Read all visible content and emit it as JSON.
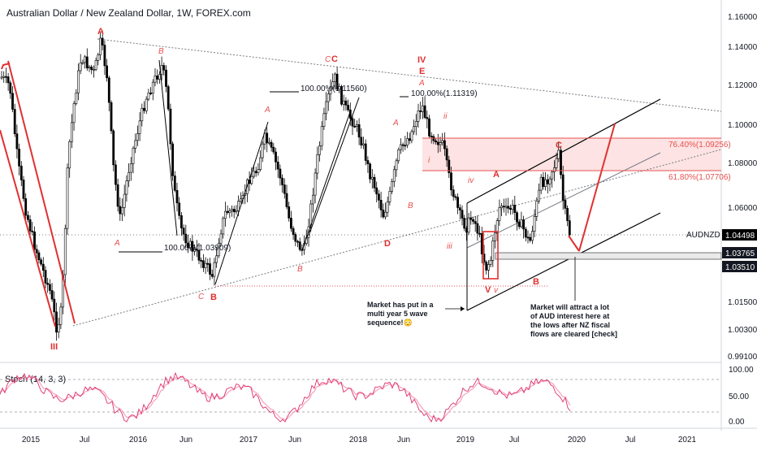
{
  "header": {
    "title": "Australian Dollar / New Zealand Dollar, 1W, FOREX.com"
  },
  "chart_data": {
    "type": "candlestick",
    "symbol": "AUDNZD",
    "timeframe": "1W",
    "y_axis": {
      "range": [
        0.985,
        1.165
      ],
      "ticks": [
        "1.16000",
        "1.14000",
        "1.12000",
        "1.10000",
        "1.08000",
        "1.06000",
        "1.04498",
        "1.01500",
        "1.00300",
        "0.99100"
      ]
    },
    "x_axis": {
      "labels": [
        "2015",
        "Jul",
        "2016",
        "Jun",
        "2017",
        "Jun",
        "2018",
        "Jun",
        "2019",
        "Jul",
        "2020",
        "Jul",
        "2021"
      ]
    },
    "price_badges": [
      {
        "label": "AUDNZD",
        "value": "1.04498",
        "color": "#000000"
      },
      {
        "label": "",
        "value": "1.03765",
        "color": "#131722"
      },
      {
        "label": "",
        "value": "1.03510",
        "color": "#131722"
      }
    ],
    "wave_labels_major": [
      "III",
      "A",
      "B",
      "C",
      "IV",
      "E",
      "V",
      "B",
      "A",
      "C"
    ],
    "wave_labels_minor": [
      "B",
      "A",
      "C",
      "A",
      "B",
      "C",
      "A",
      "B",
      "A",
      "i",
      "ii",
      "iii",
      "iv",
      "v",
      "C",
      "D"
    ],
    "fib_levels": [
      {
        "label": "100.00%(1.03909)",
        "value": 1.03909
      },
      {
        "label": "100.00%(1.11560)",
        "value": 1.1156
      },
      {
        "label": "100.00%(1.11319)",
        "value": 1.11319
      },
      {
        "label": "76.40%(1.09256)",
        "value": 1.09256
      },
      {
        "label": "61.80%(1.07706)",
        "value": 1.07706
      }
    ],
    "annotations": [
      {
        "id": "note1",
        "lines": [
          "Market has put in a",
          "multi year 5 wave",
          "sequence!😳"
        ]
      },
      {
        "id": "note2",
        "lines": [
          "Market will attract a lot",
          "of AUD interest here at",
          "the lows after NZ fiscal",
          "flows are cleared [check]"
        ]
      }
    ],
    "indicator": {
      "name": "Stoch (14, 3, 3)",
      "ticks": [
        "100.00",
        "50.00",
        "0.00"
      ],
      "levels": [
        80,
        20
      ],
      "colors": {
        "k": "#e0306a",
        "d": "#f5a3c0"
      }
    },
    "colors": {
      "candle": "#000000",
      "wave": "#e03030",
      "fib": "#e85050",
      "fib_zone": "#fde3e3"
    }
  }
}
